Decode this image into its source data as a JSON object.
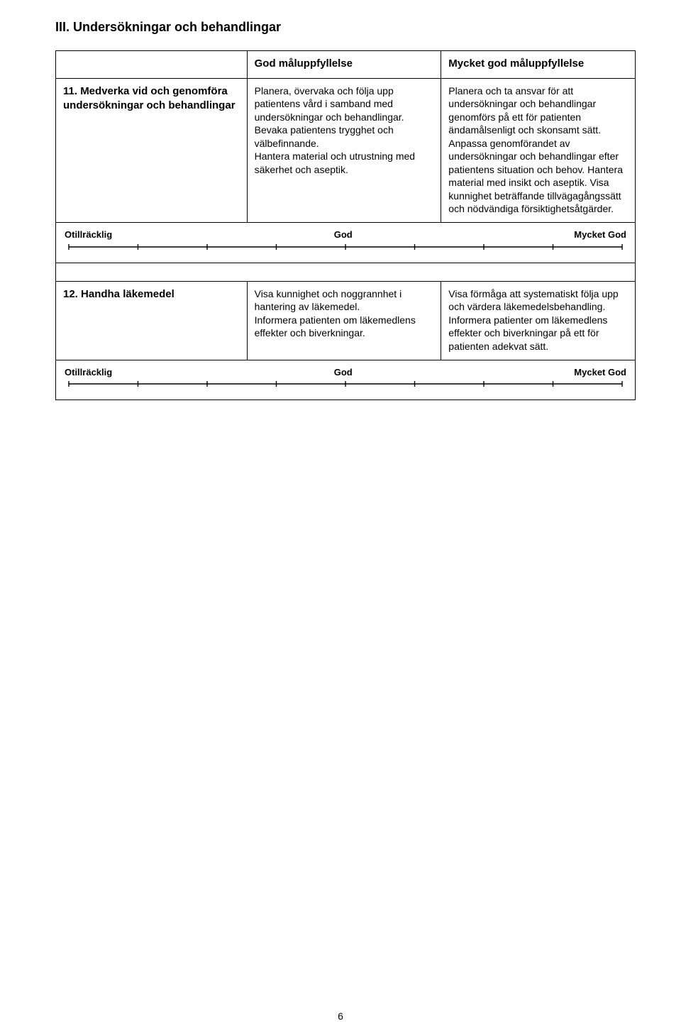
{
  "section_title": "III. Undersökningar och behandlingar",
  "header": {
    "col_mid": "God måluppfyllelse",
    "col_right": "Mycket god måluppfyllelse"
  },
  "item11": {
    "label": "11. Medverka vid och genomföra undersökningar och behandlingar",
    "god": "Planera, övervaka och följa upp patientens vård i samband med undersökningar och behandlingar. Bevaka patientens trygghet och välbefinnande.\nHantera material och utrustning med säkerhet och aseptik.",
    "mycket": "Planera och ta ansvar för att undersökningar och behandlingar genomförs på ett för patienten ändamålsenligt och skonsamt sätt. Anpassa genomförandet av undersökningar och behandlingar efter patientens situation och behov. Hantera material med insikt och aseptik. Visa kunnighet beträffande tillvägagångssätt och nödvändiga försiktighetsåtgärder."
  },
  "item12": {
    "label": "12. Handha läkemedel",
    "god": "Visa kunnighet och noggrannhet i hantering av läkemedel.\nInformera patienten om läkemedlens effekter och biverkningar.",
    "mycket": "Visa förmåga att systematiskt följa upp och värdera läkemedelsbehandling. Informera patienter om läkemedlens effekter och biverkningar på ett för patienten adekvat sätt."
  },
  "scale": {
    "left": "Otillräcklig",
    "mid": "God",
    "right": "Mycket God",
    "tick_count": 9,
    "line_color": "#000000",
    "line_width": 1.4,
    "tick_height": 8
  },
  "page_number": "6"
}
